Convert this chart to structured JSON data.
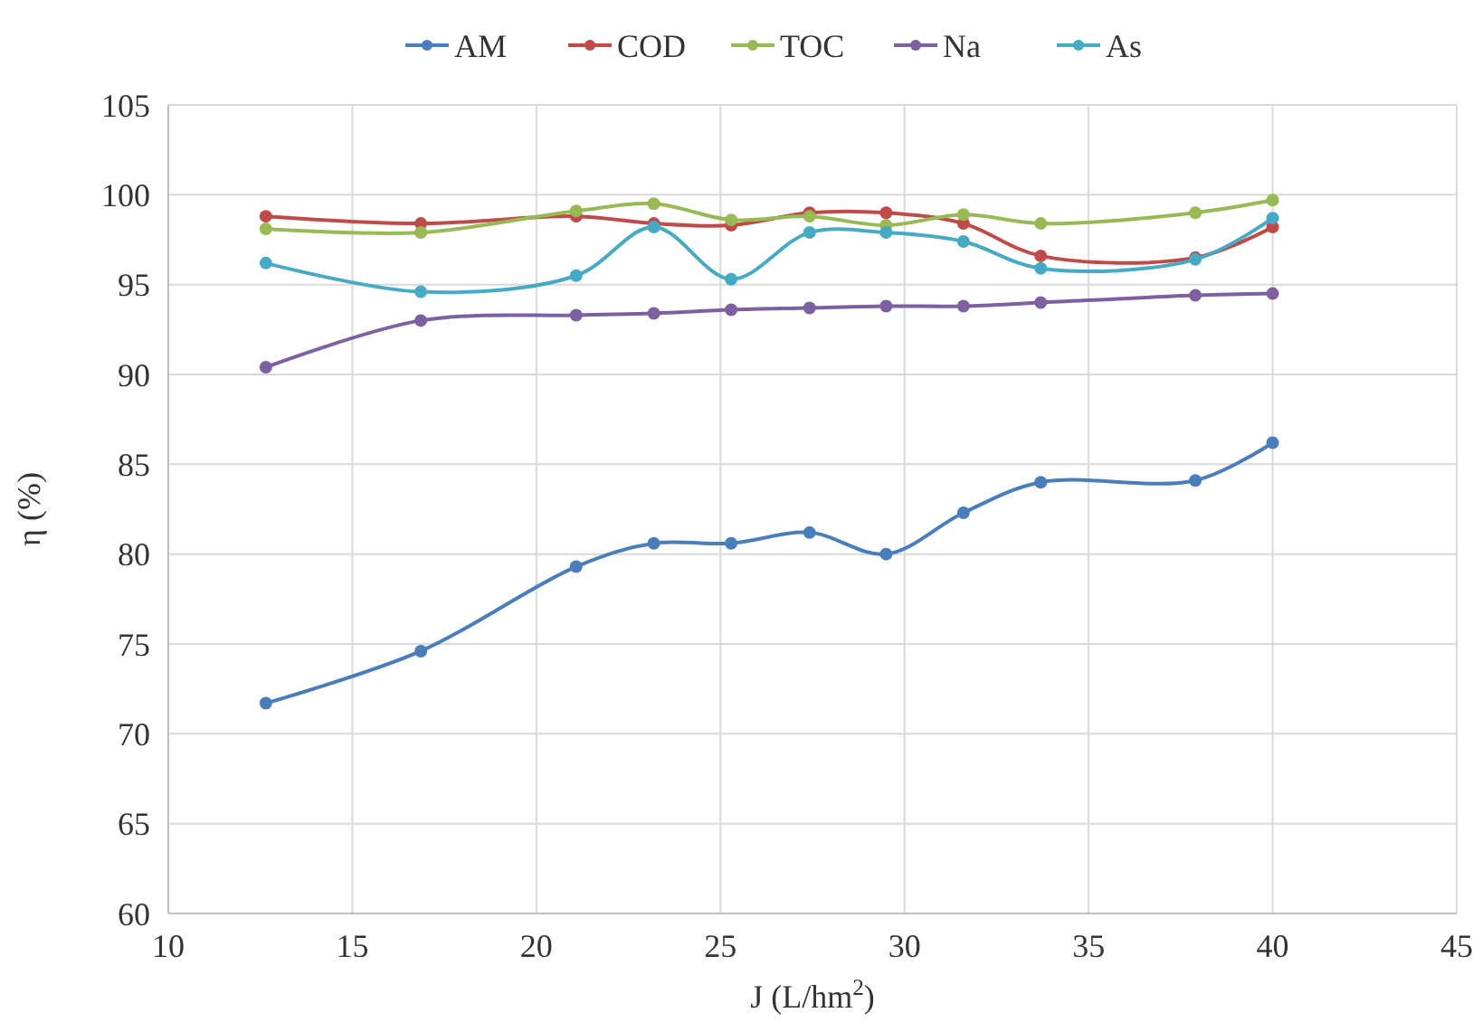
{
  "chart_data": {
    "type": "line",
    "xlabel": "J (L/hm$^{2}$)",
    "ylabel": "η (%)",
    "x": [
      12.65,
      16.86,
      21.08,
      23.19,
      25.29,
      27.42,
      29.5,
      31.6,
      33.7,
      37.9,
      40.0
    ],
    "series": [
      {
        "name": "AM",
        "color": "#4a7ebb",
        "values": [
          71.7,
          74.6,
          79.3,
          80.6,
          80.6,
          81.2,
          80.0,
          82.3,
          84.0,
          84.1,
          86.2
        ]
      },
      {
        "name": "COD",
        "color": "#be4b48",
        "values": [
          98.8,
          98.4,
          98.8,
          98.4,
          98.3,
          99.0,
          99.0,
          98.4,
          96.6,
          96.5,
          98.2
        ]
      },
      {
        "name": "TOC",
        "color": "#98b954",
        "values": [
          98.1,
          97.9,
          99.1,
          99.5,
          98.6,
          98.8,
          98.3,
          98.9,
          98.4,
          99.0,
          99.7
        ]
      },
      {
        "name": "Na",
        "color": "#7d60a0",
        "values": [
          90.4,
          93.0,
          93.3,
          93.4,
          93.6,
          93.7,
          93.8,
          93.8,
          94.0,
          94.4,
          94.5
        ]
      },
      {
        "name": "As",
        "color": "#46aac5",
        "values": [
          96.2,
          94.6,
          95.5,
          98.2,
          95.3,
          97.9,
          97.9,
          97.4,
          95.9,
          96.4,
          98.7
        ]
      }
    ],
    "xlim": [
      10,
      45
    ],
    "xticks": [
      10,
      15,
      20,
      25,
      30,
      35,
      40,
      45
    ],
    "ylim": [
      60,
      105
    ],
    "yticks": [
      60,
      65,
      70,
      75,
      80,
      85,
      90,
      95,
      100,
      105
    ],
    "grid": true,
    "legend": "top",
    "marker": "circle",
    "line_style": "solid"
  }
}
